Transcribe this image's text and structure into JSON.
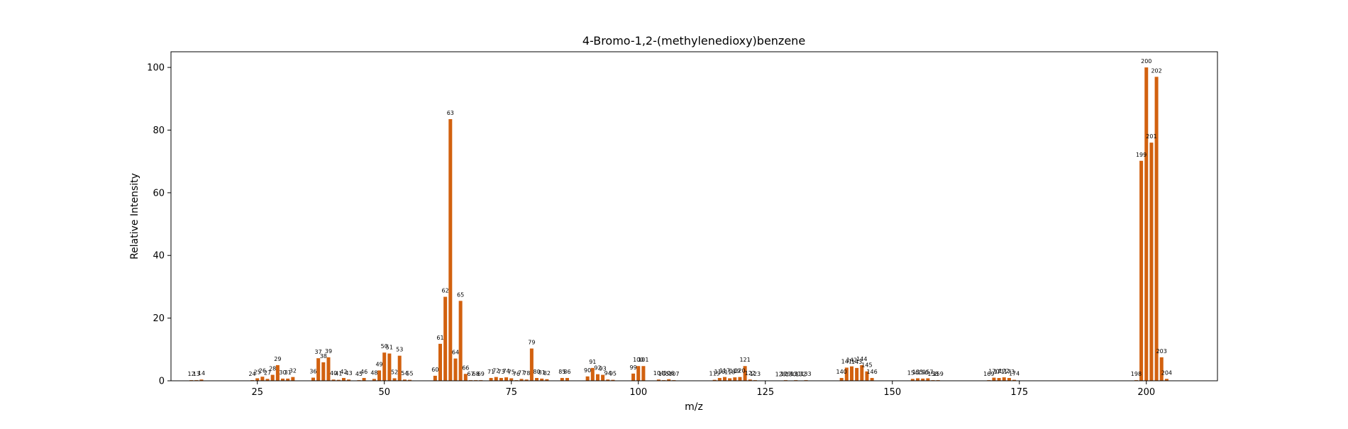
{
  "chart_data": {
    "type": "bar",
    "title": "4-Bromo-1,2-(methylenedioxy)benzene",
    "xlabel": "m/z",
    "ylabel": "Relative Intensity",
    "xlim": [
      8,
      214
    ],
    "ylim": [
      0,
      105
    ],
    "grid": false,
    "bar_color": "#d2610f",
    "x_ticks": [
      25,
      50,
      75,
      100,
      125,
      150,
      175,
      200
    ],
    "y_ticks": [
      0,
      20,
      40,
      60,
      80,
      100
    ],
    "peaks": [
      {
        "mz": 12,
        "intensity": 0.2
      },
      {
        "mz": 13,
        "intensity": 0.2
      },
      {
        "mz": 14,
        "intensity": 0.4
      },
      {
        "mz": 24,
        "intensity": 0.2
      },
      {
        "mz": 25,
        "intensity": 0.8
      },
      {
        "mz": 26,
        "intensity": 1.3
      },
      {
        "mz": 27,
        "intensity": 0.6
      },
      {
        "mz": 28,
        "intensity": 1.9
      },
      {
        "mz": 29,
        "intensity": 5.0
      },
      {
        "mz": 30,
        "intensity": 0.7
      },
      {
        "mz": 31,
        "intensity": 0.7
      },
      {
        "mz": 32,
        "intensity": 1.2
      },
      {
        "mz": 36,
        "intensity": 1.0
      },
      {
        "mz": 37,
        "intensity": 7.2
      },
      {
        "mz": 38,
        "intensity": 5.9
      },
      {
        "mz": 39,
        "intensity": 7.5
      },
      {
        "mz": 40,
        "intensity": 0.4
      },
      {
        "mz": 41,
        "intensity": 0.3
      },
      {
        "mz": 42,
        "intensity": 0.9
      },
      {
        "mz": 43,
        "intensity": 0.4
      },
      {
        "mz": 45,
        "intensity": 0.2
      },
      {
        "mz": 46,
        "intensity": 0.9
      },
      {
        "mz": 48,
        "intensity": 0.6
      },
      {
        "mz": 49,
        "intensity": 3.3
      },
      {
        "mz": 50,
        "intensity": 9.0
      },
      {
        "mz": 51,
        "intensity": 8.7
      },
      {
        "mz": 52,
        "intensity": 0.8
      },
      {
        "mz": 53,
        "intensity": 8.0
      },
      {
        "mz": 54,
        "intensity": 0.4
      },
      {
        "mz": 55,
        "intensity": 0.3
      },
      {
        "mz": 60,
        "intensity": 1.6
      },
      {
        "mz": 61,
        "intensity": 11.8
      },
      {
        "mz": 62,
        "intensity": 26.8
      },
      {
        "mz": 63,
        "intensity": 83.5
      },
      {
        "mz": 64,
        "intensity": 7.1
      },
      {
        "mz": 65,
        "intensity": 25.5
      },
      {
        "mz": 66,
        "intensity": 2.2
      },
      {
        "mz": 67,
        "intensity": 0.2
      },
      {
        "mz": 68,
        "intensity": 0.2
      },
      {
        "mz": 69,
        "intensity": 0.2
      },
      {
        "mz": 71,
        "intensity": 0.9
      },
      {
        "mz": 72,
        "intensity": 1.2
      },
      {
        "mz": 73,
        "intensity": 0.9
      },
      {
        "mz": 74,
        "intensity": 1.1
      },
      {
        "mz": 75,
        "intensity": 0.8
      },
      {
        "mz": 76,
        "intensity": 0.2
      },
      {
        "mz": 77,
        "intensity": 0.6
      },
      {
        "mz": 78,
        "intensity": 0.4
      },
      {
        "mz": 79,
        "intensity": 10.3
      },
      {
        "mz": 80,
        "intensity": 0.9
      },
      {
        "mz": 81,
        "intensity": 0.7
      },
      {
        "mz": 82,
        "intensity": 0.5
      },
      {
        "mz": 85,
        "intensity": 0.9
      },
      {
        "mz": 86,
        "intensity": 0.9
      },
      {
        "mz": 90,
        "intensity": 1.4
      },
      {
        "mz": 91,
        "intensity": 4.1
      },
      {
        "mz": 92,
        "intensity": 2.1
      },
      {
        "mz": 93,
        "intensity": 1.9
      },
      {
        "mz": 94,
        "intensity": 0.4
      },
      {
        "mz": 95,
        "intensity": 0.3
      },
      {
        "mz": 99,
        "intensity": 2.3
      },
      {
        "mz": 100,
        "intensity": 4.7
      },
      {
        "mz": 101,
        "intensity": 4.7
      },
      {
        "mz": 104,
        "intensity": 0.4
      },
      {
        "mz": 105,
        "intensity": 0.2
      },
      {
        "mz": 106,
        "intensity": 0.5
      },
      {
        "mz": 107,
        "intensity": 0.2
      },
      {
        "mz": 115,
        "intensity": 0.3
      },
      {
        "mz": 116,
        "intensity": 0.9
      },
      {
        "mz": 117,
        "intensity": 1.2
      },
      {
        "mz": 118,
        "intensity": 0.8
      },
      {
        "mz": 119,
        "intensity": 1.1
      },
      {
        "mz": 120,
        "intensity": 1.2
      },
      {
        "mz": 121,
        "intensity": 4.7
      },
      {
        "mz": 122,
        "intensity": 0.4
      },
      {
        "mz": 123,
        "intensity": 0.2
      },
      {
        "mz": 128,
        "intensity": 0.1
      },
      {
        "mz": 129,
        "intensity": 0.2
      },
      {
        "mz": 130,
        "intensity": 0.1
      },
      {
        "mz": 131,
        "intensity": 0.2
      },
      {
        "mz": 132,
        "intensity": 0.1
      },
      {
        "mz": 133,
        "intensity": 0.2
      },
      {
        "mz": 140,
        "intensity": 0.9
      },
      {
        "mz": 141,
        "intensity": 4.2
      },
      {
        "mz": 142,
        "intensity": 4.6
      },
      {
        "mz": 143,
        "intensity": 4.1
      },
      {
        "mz": 144,
        "intensity": 5.0
      },
      {
        "mz": 145,
        "intensity": 3.0
      },
      {
        "mz": 146,
        "intensity": 0.9
      },
      {
        "mz": 154,
        "intensity": 0.6
      },
      {
        "mz": 155,
        "intensity": 0.8
      },
      {
        "mz": 156,
        "intensity": 0.7
      },
      {
        "mz": 157,
        "intensity": 0.8
      },
      {
        "mz": 158,
        "intensity": 0.2
      },
      {
        "mz": 159,
        "intensity": 0.2
      },
      {
        "mz": 169,
        "intensity": 0.2
      },
      {
        "mz": 170,
        "intensity": 1.0
      },
      {
        "mz": 171,
        "intensity": 0.9
      },
      {
        "mz": 172,
        "intensity": 1.1
      },
      {
        "mz": 173,
        "intensity": 0.9
      },
      {
        "mz": 174,
        "intensity": 0.3
      },
      {
        "mz": 198,
        "intensity": 0.2
      },
      {
        "mz": 199,
        "intensity": 70.2
      },
      {
        "mz": 200,
        "intensity": 100.0
      },
      {
        "mz": 201,
        "intensity": 76.0
      },
      {
        "mz": 202,
        "intensity": 97.0
      },
      {
        "mz": 203,
        "intensity": 7.5
      },
      {
        "mz": 204,
        "intensity": 0.6
      }
    ]
  }
}
